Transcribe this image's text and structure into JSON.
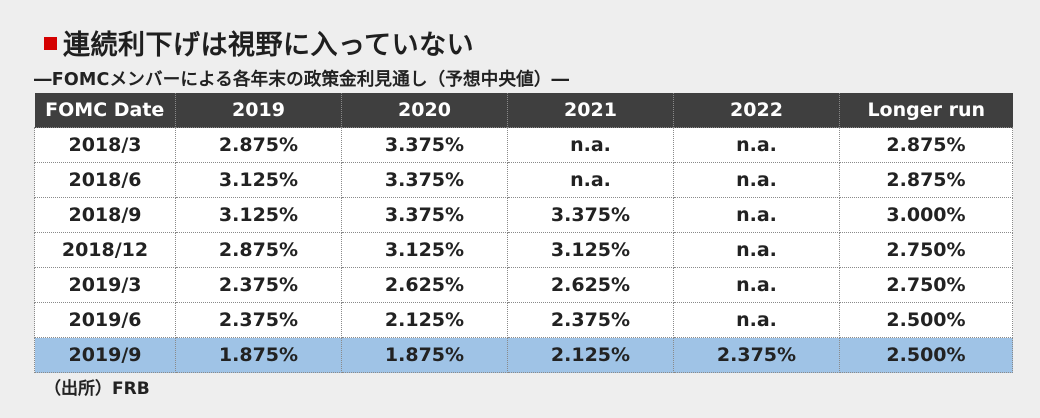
{
  "header": {
    "marker_icon": "red-square-icon",
    "marker_color": "#d40000",
    "title": "連続利下げは視野に入っていない",
    "subtitle": "―FOMCメンバーによる各年末の政策金利見通し（予想中央値）―"
  },
  "source": "（出所）FRB",
  "colors": {
    "header_bg": "#3f3f3f",
    "row_bg": "#ffffff",
    "highlight_row_bg": "#9fc3e6",
    "page_bg": "#eeeeee"
  },
  "chart_data": {
    "type": "table",
    "title": "連続利下げは視野に入っていない",
    "subtitle": "―FOMCメンバーによる各年末の政策金利見通し（予想中央値）―",
    "columns": [
      "FOMC Date",
      "2019",
      "2020",
      "2021",
      "2022",
      "Longer run"
    ],
    "rows": [
      [
        "2018/3",
        "2.875%",
        "3.375%",
        "n.a.",
        "n.a.",
        "2.875%"
      ],
      [
        "2018/6",
        "3.125%",
        "3.375%",
        "n.a.",
        "n.a.",
        "2.875%"
      ],
      [
        "2018/9",
        "3.125%",
        "3.375%",
        "3.375%",
        "n.a.",
        "3.000%"
      ],
      [
        "2018/12",
        "2.875%",
        "3.125%",
        "3.125%",
        "n.a.",
        "2.750%"
      ],
      [
        "2019/3",
        "2.375%",
        "2.625%",
        "2.625%",
        "n.a.",
        "2.750%"
      ],
      [
        "2019/6",
        "2.375%",
        "2.125%",
        "2.375%",
        "n.a.",
        "2.500%"
      ],
      [
        "2019/9",
        "1.875%",
        "1.875%",
        "2.125%",
        "2.375%",
        "2.500%"
      ]
    ],
    "highlighted_row": "2019/9",
    "source": "（出所）FRB"
  }
}
